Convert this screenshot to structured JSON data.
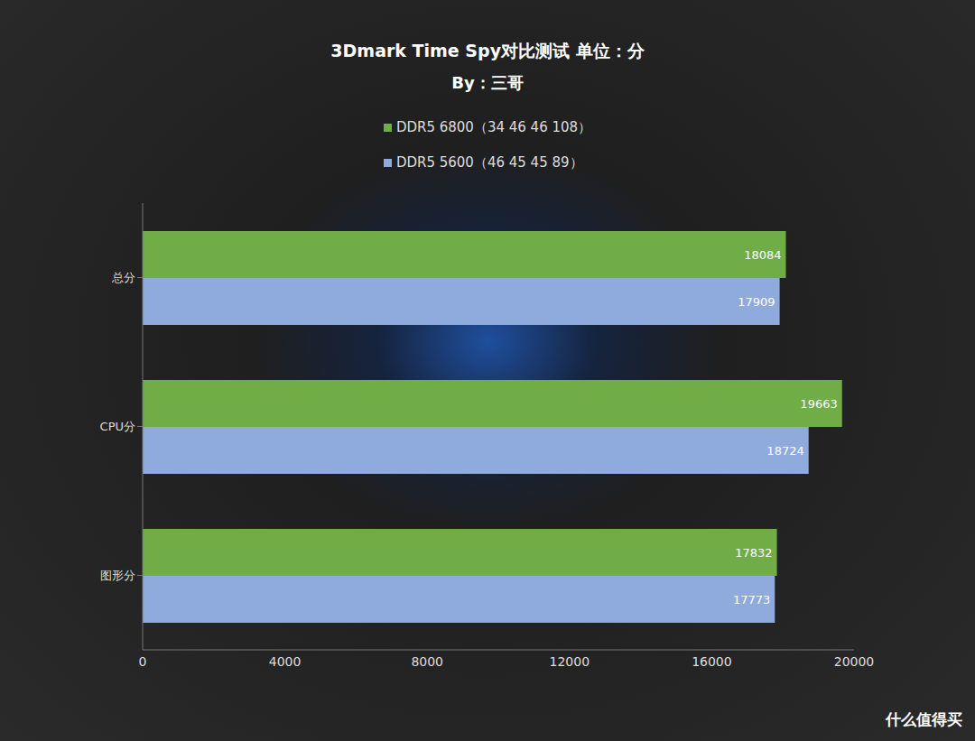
{
  "chart_data": {
    "type": "bar",
    "title": "3Dmark Time Spy对比测试 单位：分",
    "subtitle": "By：三哥",
    "orientation": "horizontal",
    "categories": [
      "总分",
      "CPU分",
      "图形分"
    ],
    "series": [
      {
        "name": "DDR5 6800（34 46 46 108）",
        "color": "#70ad47",
        "values": [
          18084,
          19663,
          17832
        ]
      },
      {
        "name": "DDR5 5600（46 45 45 89）",
        "color": "#8faadc",
        "values": [
          17909,
          18724,
          17773
        ]
      }
    ],
    "xlim": [
      0,
      20000
    ],
    "xticks": [
      0,
      4000,
      8000,
      12000,
      16000,
      20000
    ],
    "grid": false,
    "legend": "top",
    "data_labels": true,
    "annotations": [
      "什么值得买"
    ]
  }
}
